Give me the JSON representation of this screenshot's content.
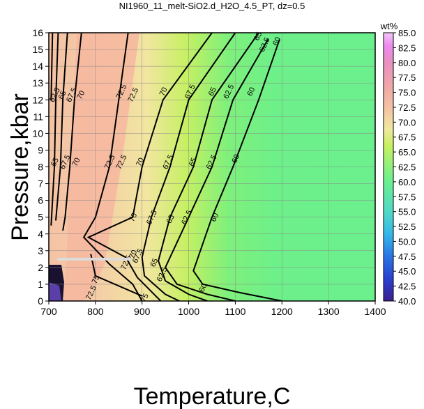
{
  "chart_data": {
    "type": "heatmap",
    "title": "NI1960_11_melt-SiO2.d_H2O_4.5_PT, dz=0.5",
    "xlabel": "Temperature,C",
    "ylabel": "Pressure,kbar",
    "xlim": [
      700,
      1400
    ],
    "ylim": [
      0,
      16
    ],
    "x_ticks": [
      700,
      800,
      900,
      1000,
      1100,
      1200,
      1300,
      1400
    ],
    "y_ticks": [
      0,
      1,
      2,
      3,
      4,
      5,
      6,
      7,
      8,
      9,
      10,
      11,
      12,
      13,
      14,
      15,
      16
    ],
    "grid": true,
    "colorbar": {
      "label": "wt%",
      "min": 40,
      "max": 85,
      "ticks": [
        40.0,
        42.5,
        45.0,
        47.5,
        50.0,
        52.5,
        55.0,
        57.5,
        60.0,
        62.5,
        65.0,
        67.5,
        70.0,
        72.5,
        75.0,
        77.5,
        80.0,
        82.5,
        85.0
      ],
      "tick_labels": [
        "40.0",
        "42.5",
        "45.0",
        "47.5",
        "50.0",
        "52.5",
        "55.0",
        "57.5",
        "60.0",
        "62.5",
        "65.0",
        "67.5",
        "70.0",
        "72.5",
        "75.0",
        "77.5",
        "80.0",
        "82.5",
        "85.0"
      ],
      "colors": [
        "#3d1f8f",
        "#2a3fcf",
        "#2a77e6",
        "#35b8e8",
        "#4fd8c8",
        "#6cf08e",
        "#c8f060",
        "#f0e8a0",
        "#f4c2a4",
        "#f0a8a8",
        "#e890c0",
        "#ee88ee",
        "#f0c8f8"
      ]
    },
    "contours": [
      {
        "level": "60",
        "points": [
          [
            1195,
            15.6
          ],
          [
            1150,
            12
          ],
          [
            1095,
            8
          ],
          [
            1050,
            5
          ],
          [
            1010,
            1.8
          ],
          [
            1030,
            1.0
          ],
          [
            1110,
            0.5
          ],
          [
            1200,
            0.0
          ]
        ],
        "labels": [
          [
            1188,
            15.5
          ],
          [
            1133,
            12.5
          ],
          [
            1100,
            8.5
          ],
          [
            1055,
            5.0
          ],
          [
            1030,
            0.8
          ]
        ]
      },
      {
        "level": "62.5",
        "points": [
          [
            1170,
            15.6
          ],
          [
            1095,
            12
          ],
          [
            1050,
            8
          ],
          [
            1000,
            5
          ],
          [
            950,
            2.0
          ],
          [
            975,
            1.0
          ],
          [
            1040,
            0.4
          ],
          [
            1100,
            0.0
          ]
        ],
        "labels": [
          [
            1162,
            15.3
          ],
          [
            1085,
            12.5
          ],
          [
            1048,
            8.3
          ],
          [
            995,
            5.0
          ],
          [
            942,
            1.6
          ]
        ]
      },
      {
        "level": "65",
        "points": [
          [
            1150,
            16
          ],
          [
            1050,
            12
          ],
          [
            1010,
            8
          ],
          [
            960,
            5
          ],
          [
            935,
            2.4
          ],
          [
            950,
            1.2
          ],
          [
            1000,
            0.4
          ],
          [
            1040,
            0.0
          ]
        ],
        "labels": [
          [
            1148,
            15.8
          ],
          [
            1050,
            12.5
          ],
          [
            1008,
            8.3
          ],
          [
            960,
            4.9
          ],
          [
            925,
            2.3
          ]
        ]
      },
      {
        "level": "67.5",
        "points": [
          [
            1100,
            16
          ],
          [
            1000,
            12
          ],
          [
            960,
            8
          ],
          [
            920,
            5
          ],
          [
            900,
            2.6
          ],
          [
            905,
            1.5
          ],
          [
            950,
            0.4
          ],
          [
            980,
            0.0
          ]
        ],
        "labels": [
          [
            1002,
            12.5
          ],
          [
            955,
            8.3
          ],
          [
            920,
            5.0
          ],
          [
            890,
            2.7
          ]
        ]
      },
      {
        "level": "70",
        "points": [
          [
            1050,
            16
          ],
          [
            945,
            12
          ],
          [
            900,
            8
          ],
          [
            880,
            5
          ],
          [
            785,
            3.8
          ],
          [
            865,
            2.6
          ],
          [
            890,
            1.4
          ],
          [
            940,
            0.0
          ]
        ],
        "labels": [
          [
            945,
            12.5
          ],
          [
            895,
            8.3
          ],
          [
            880,
            5.0
          ],
          [
            880,
            2.8
          ]
        ]
      },
      {
        "level": "72.5",
        "points": [
          [
            870,
            16
          ],
          [
            850,
            12
          ],
          [
            830,
            8
          ],
          [
            800,
            5
          ],
          [
            775,
            3.8
          ],
          [
            830,
            2.2
          ],
          [
            880,
            1.0
          ],
          [
            900,
            0.0
          ]
        ],
        "labels": [
          [
            855,
            12.5
          ],
          [
            880,
            12.3
          ],
          [
            855,
            8.3
          ],
          [
            830,
            8.3
          ],
          [
            865,
            2.3
          ],
          [
            790,
            0.5
          ]
        ]
      },
      {
        "level": "75",
        "points": [
          [
            790,
            2.8
          ],
          [
            800,
            1.5
          ],
          [
            900,
            0.3
          ]
        ],
        "labels": [
          [
            800,
            1.3
          ],
          [
            905,
            0.2
          ]
        ]
      },
      {
        "level": "70",
        "points": [
          [
            770,
            16
          ],
          [
            755,
            12
          ],
          [
            745,
            8
          ],
          [
            735,
            5
          ],
          [
            730,
            4.2
          ]
        ],
        "labels": [
          [
            768,
            12.3
          ],
          [
            758,
            8.3
          ]
        ]
      },
      {
        "level": "67.5",
        "points": [
          [
            740,
            16
          ],
          [
            730,
            12
          ],
          [
            725,
            8
          ],
          [
            715,
            4.8
          ]
        ],
        "labels": [
          [
            748,
            12.3
          ],
          [
            734,
            8.3
          ]
        ]
      },
      {
        "level": "65",
        "points": [
          [
            720,
            16
          ],
          [
            715,
            12
          ],
          [
            712,
            8
          ],
          [
            705,
            4.5
          ]
        ],
        "labels": [
          [
            728,
            12.3
          ],
          [
            712,
            8.3
          ]
        ]
      },
      {
        "level": "62.5",
        "points": [
          [
            708,
            16
          ],
          [
            705,
            12
          ]
        ],
        "labels": [
          [
            712,
            12.3
          ]
        ]
      }
    ],
    "highlight_segment": {
      "x": [
        718,
        878
      ],
      "y": [
        2.5,
        2.5
      ]
    }
  }
}
